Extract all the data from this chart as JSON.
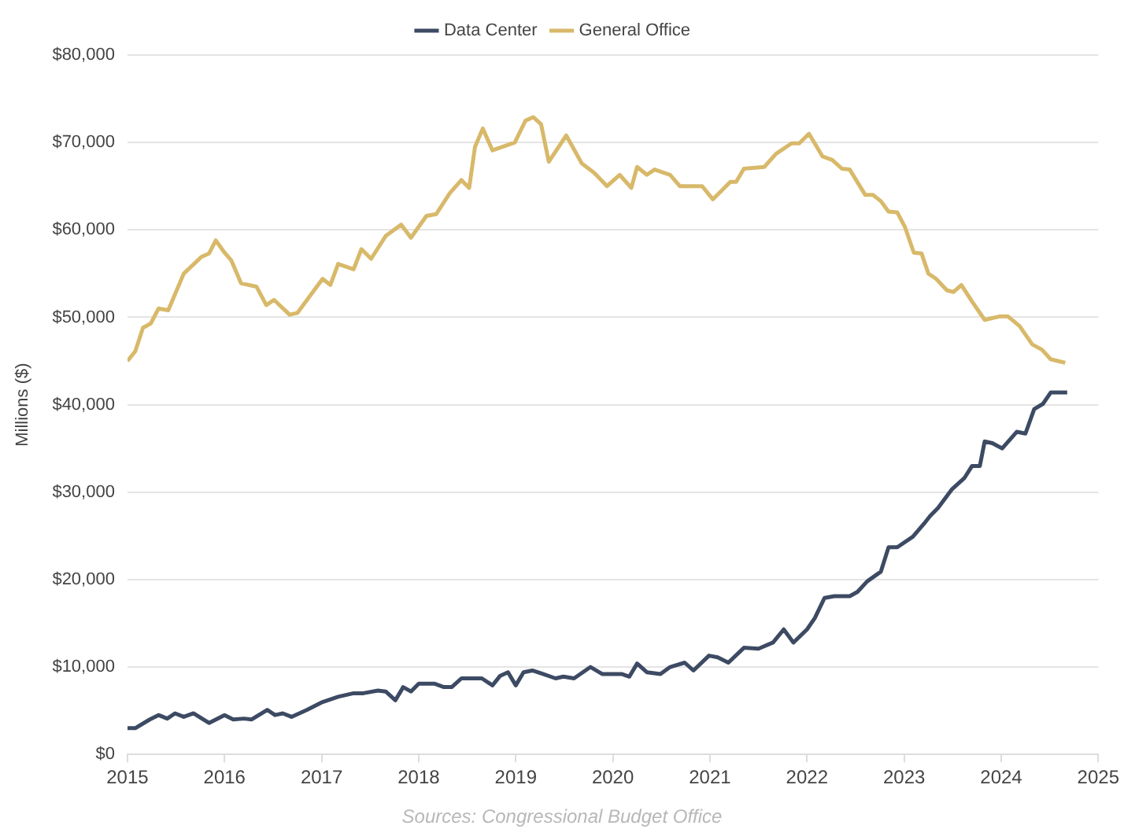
{
  "chart_data": {
    "type": "line",
    "ylabel": "Millions ($)",
    "legend": "top",
    "grid": "y",
    "marker": "none",
    "line_style": "solid",
    "xlim": [
      2015,
      2025
    ],
    "xticks": [
      2015,
      2016,
      2017,
      2018,
      2019,
      2020,
      2021,
      2022,
      2023,
      2024,
      2025
    ],
    "ylim": [
      0,
      80000
    ],
    "yticks": [
      {
        "value": 0,
        "label": "$0"
      },
      {
        "value": 10000,
        "label": "$10,000"
      },
      {
        "value": 20000,
        "label": "$20,000"
      },
      {
        "value": 30000,
        "label": "$30,000"
      },
      {
        "value": 40000,
        "label": "$40,000"
      },
      {
        "value": 50000,
        "label": "$50,000"
      },
      {
        "value": 60000,
        "label": "$60,000"
      },
      {
        "value": 70000,
        "label": "$70,000"
      },
      {
        "value": 80000,
        "label": "$80,000"
      }
    ],
    "annotations": [
      "Sources: Congressional Budget Office"
    ],
    "series": [
      {
        "name": "Data Center",
        "color": "#3d4a63",
        "x": [
          2015.0,
          2015.08,
          2015.23,
          2015.32,
          2015.41,
          2015.49,
          2015.58,
          2015.68,
          2015.84,
          2016.0,
          2016.09,
          2016.2,
          2016.28,
          2016.44,
          2016.52,
          2016.6,
          2016.69,
          2016.85,
          2017.01,
          2017.17,
          2017.33,
          2017.43,
          2017.58,
          2017.66,
          2017.76,
          2017.84,
          2017.92,
          2018.0,
          2018.16,
          2018.26,
          2018.34,
          2018.44,
          2018.65,
          2018.76,
          2018.84,
          2018.92,
          2019.0,
          2019.08,
          2019.17,
          2019.28,
          2019.41,
          2019.49,
          2019.6,
          2019.77,
          2019.89,
          2020.09,
          2020.17,
          2020.25,
          2020.35,
          2020.49,
          2020.59,
          2020.74,
          2020.83,
          2020.99,
          2021.08,
          2021.19,
          2021.35,
          2021.5,
          2021.65,
          2021.76,
          2021.86,
          2022.0,
          2022.08,
          2022.18,
          2022.28,
          2022.44,
          2022.52,
          2022.62,
          2022.76,
          2022.84,
          2022.93,
          2023.09,
          2023.22,
          2023.27,
          2023.35,
          2023.49,
          2023.62,
          2023.7,
          2023.78,
          2023.83,
          2023.91,
          2024.01,
          2024.16,
          2024.25,
          2024.34,
          2024.43,
          2024.51,
          2024.68
        ],
        "values": [
          3000,
          3000,
          4000,
          4500,
          4100,
          4700,
          4300,
          4700,
          3600,
          4500,
          4000,
          4100,
          4000,
          5100,
          4500,
          4700,
          4300,
          5100,
          6000,
          6600,
          7000,
          7000,
          7300,
          7200,
          6200,
          7700,
          7200,
          8100,
          8100,
          7700,
          7700,
          8700,
          8700,
          7900,
          9000,
          9400,
          7900,
          9400,
          9600,
          9200,
          8700,
          8900,
          8700,
          10000,
          9200,
          9200,
          8900,
          10400,
          9400,
          9200,
          10000,
          10500,
          9600,
          11300,
          11100,
          10500,
          12200,
          12100,
          12800,
          14300,
          12800,
          14300,
          15600,
          17900,
          18100,
          18100,
          18600,
          19800,
          20900,
          23700,
          23700,
          24900,
          26600,
          27300,
          28200,
          30300,
          31600,
          33000,
          33000,
          35800,
          35600,
          35000,
          36900,
          36700,
          39500,
          40100,
          41400,
          41400
        ]
      },
      {
        "name": "General Office",
        "color": "#d8b96a",
        "x": [
          2015.0,
          2015.08,
          2015.16,
          2015.24,
          2015.32,
          2015.42,
          2015.58,
          2015.76,
          2015.84,
          2015.91,
          2016.0,
          2016.07,
          2016.17,
          2016.33,
          2016.43,
          2016.51,
          2016.67,
          2016.75,
          2017.01,
          2017.09,
          2017.17,
          2017.33,
          2017.41,
          2017.51,
          2017.66,
          2017.82,
          2017.92,
          2018.08,
          2018.18,
          2018.32,
          2018.44,
          2018.52,
          2018.58,
          2018.66,
          2018.76,
          2018.99,
          2019.1,
          2019.18,
          2019.26,
          2019.34,
          2019.52,
          2019.68,
          2019.81,
          2019.94,
          2020.07,
          2020.19,
          2020.25,
          2020.35,
          2020.43,
          2020.59,
          2020.69,
          2020.92,
          2021.03,
          2021.21,
          2021.27,
          2021.35,
          2021.56,
          2021.68,
          2021.84,
          2021.92,
          2022.02,
          2022.16,
          2022.26,
          2022.36,
          2022.44,
          2022.6,
          2022.68,
          2022.76,
          2022.84,
          2022.93,
          2023.01,
          2023.1,
          2023.18,
          2023.25,
          2023.33,
          2023.44,
          2023.51,
          2023.59,
          2023.7,
          2023.83,
          2023.98,
          2024.07,
          2024.19,
          2024.32,
          2024.42,
          2024.51,
          2024.66
        ],
        "values": [
          45000,
          46100,
          48800,
          49300,
          51000,
          50800,
          55000,
          56900,
          57300,
          58800,
          57400,
          56500,
          53900,
          53500,
          51400,
          52000,
          50300,
          50500,
          54400,
          53700,
          56100,
          55500,
          57800,
          56700,
          59300,
          60600,
          59100,
          61600,
          61800,
          64200,
          65700,
          64800,
          69500,
          71600,
          69100,
          70000,
          72500,
          72900,
          72100,
          67800,
          70800,
          67600,
          66500,
          65000,
          66300,
          64800,
          67200,
          66300,
          66900,
          66300,
          65000,
          65000,
          63500,
          65500,
          65500,
          67000,
          67200,
          68700,
          69900,
          69900,
          71000,
          68400,
          68000,
          67000,
          66900,
          64000,
          64000,
          63300,
          62100,
          62000,
          60300,
          57400,
          57300,
          55000,
          54400,
          53100,
          52900,
          53700,
          51800,
          49700,
          50100,
          50100,
          49000,
          46900,
          46300,
          45200,
          44800
        ]
      }
    ]
  }
}
